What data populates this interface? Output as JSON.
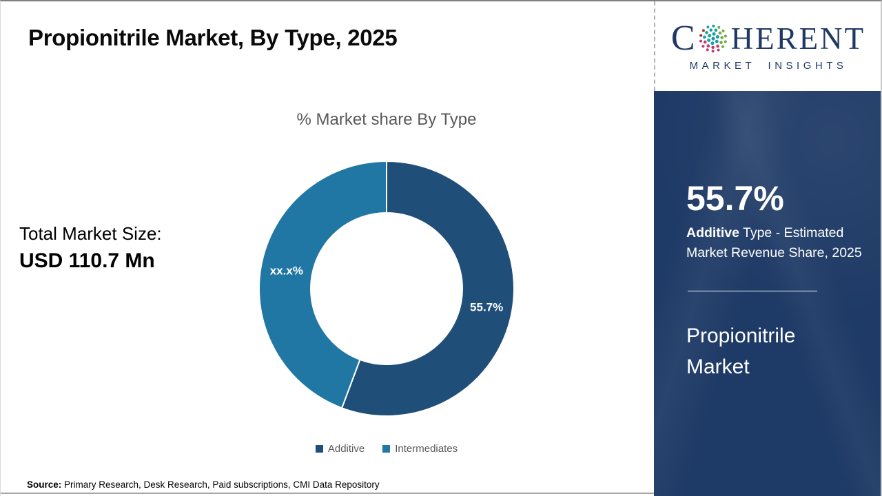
{
  "header": {
    "title": "Propionitrile Market, By Type, 2025"
  },
  "brand": {
    "name_c": "C",
    "name_rest": "HERENT",
    "tagline": "MARKET INSIGHTS",
    "navy": "#1f3864"
  },
  "main": {
    "total_label": "Total Market Size:",
    "total_value": "USD 110.7 Mn",
    "source_label": "Source:",
    "source_text": " Primary Research, Desk Research, Paid subscriptions, CMI Data Repository"
  },
  "chart_data": {
    "type": "pie",
    "donut": true,
    "title": "% Market share By Type",
    "categories": [
      "Additive",
      "Intermediates"
    ],
    "values": [
      55.7,
      44.3
    ],
    "slice_labels": [
      "55.7%",
      "xx.x%"
    ],
    "colors": [
      "#1F4E79",
      "#2177A3"
    ],
    "start_angle_deg": 0,
    "legend_position": "bottom",
    "outer_radius_px": 185,
    "inner_radius_px": 110
  },
  "sidebar": {
    "stat_value": "55.7%",
    "stat_label_bold": "Additive",
    "stat_label_rest": " Type - Estimated Market Revenue Share, 2025",
    "panel_title": "Propionitrile Market",
    "panel_color": "#1e3a66"
  }
}
